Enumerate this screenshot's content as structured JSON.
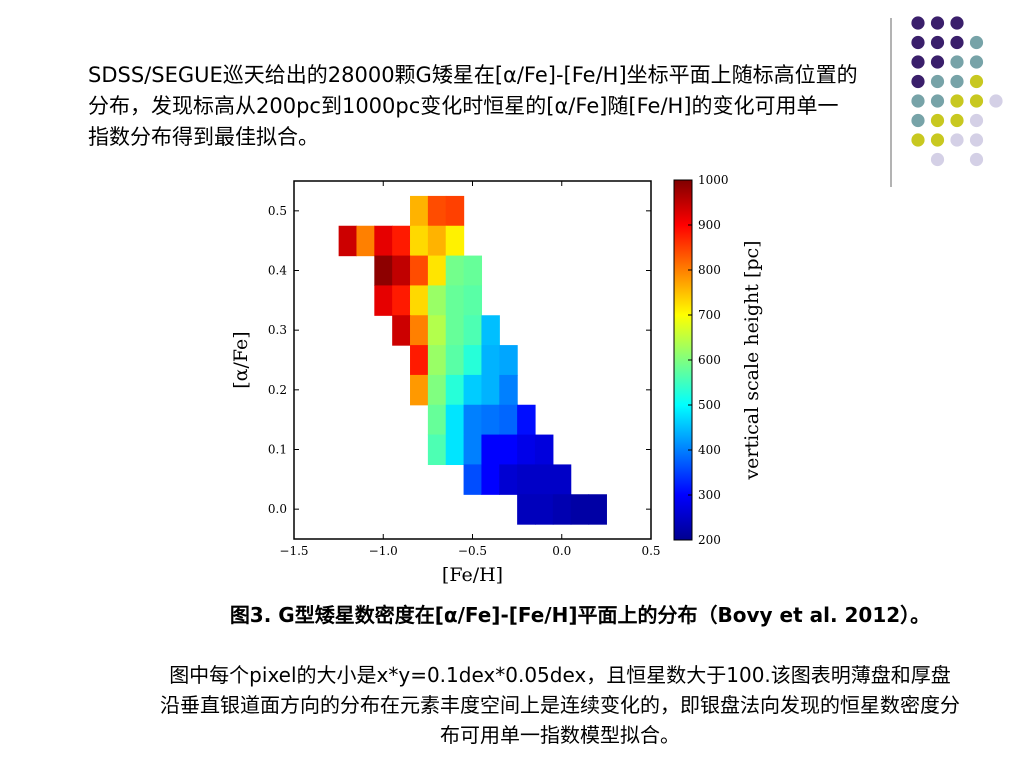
{
  "slide": {
    "intro_text": "SDSS/SEGUE巡天给出的28000颗G矮星在[α/Fe]-[Fe/H]坐标平面上随标高位置的分布，发现标高从200pc到1000pc变化时恒星的[α/Fe]随[Fe/H]的变化可用单一指数分布得到最佳拟合。",
    "caption": "图3. G型矮星数密度在[α/Fe]-[Fe/H]平面上的分布（Bovy et al. 2012）。",
    "note": "图中每个pixel的大小是x*y=0.1dex*0.05dex，且恒星数大于100.该图表明薄盘和厚盘沿垂直银道面方向的分布在元素丰度空间上是连续变化的，即银盘法向发现的恒星数密度分布可用单一指数模型拟合。"
  },
  "decoration": {
    "colors": {
      "purple": "#3a1f6b",
      "teal": "#77a3a8",
      "yellow": "#c8c820",
      "lavender": "#d4d0e6",
      "divider": "#9a9a9a"
    },
    "dot_rows": [
      [
        "purple",
        "purple",
        "purple",
        null
      ],
      [
        "purple",
        "purple",
        "purple",
        "teal"
      ],
      [
        "purple",
        "purple",
        "teal",
        "teal"
      ],
      [
        "purple",
        "teal",
        "teal",
        "yellow"
      ],
      [
        "teal",
        "teal",
        "yellow",
        "yellow",
        "lavender"
      ],
      [
        "teal",
        "yellow",
        "yellow",
        "lavender"
      ],
      [
        "yellow",
        "yellow",
        "lavender",
        "lavender"
      ],
      [
        null,
        "lavender",
        null,
        "lavender"
      ]
    ]
  },
  "chart_data": {
    "type": "heatmap",
    "xlabel": "[Fe/H]",
    "ylabel": "[α/Fe]",
    "xlim": [
      -1.5,
      0.5
    ],
    "ylim": [
      -0.05,
      0.55
    ],
    "xticks": [
      -1.5,
      -1.0,
      -0.5,
      0.0,
      0.5
    ],
    "xtick_labels": [
      "−1.5",
      "−1.0",
      "−0.5",
      "0.0",
      "0.5"
    ],
    "yticks": [
      0.0,
      0.1,
      0.2,
      0.3,
      0.4,
      0.5
    ],
    "ytick_labels": [
      "0.0",
      "0.1",
      "0.2",
      "0.3",
      "0.4",
      "0.5"
    ],
    "pixel_size": {
      "dx": 0.1,
      "dy": 0.05
    },
    "colorbar": {
      "label": "vertical scale height [pc]",
      "min": 200,
      "max": 1000,
      "ticks": [
        200,
        300,
        400,
        500,
        600,
        700,
        800,
        900,
        1000
      ],
      "colormap": "jet"
    },
    "cells": [
      {
        "x": -0.8,
        "y": 0.5,
        "value": 760
      },
      {
        "x": -0.7,
        "y": 0.5,
        "value": 840
      },
      {
        "x": -0.6,
        "y": 0.5,
        "value": 850
      },
      {
        "x": -1.2,
        "y": 0.45,
        "value": 940
      },
      {
        "x": -1.1,
        "y": 0.45,
        "value": 800
      },
      {
        "x": -1.0,
        "y": 0.45,
        "value": 920
      },
      {
        "x": -0.9,
        "y": 0.45,
        "value": 880
      },
      {
        "x": -0.8,
        "y": 0.45,
        "value": 730
      },
      {
        "x": -0.7,
        "y": 0.45,
        "value": 760
      },
      {
        "x": -0.6,
        "y": 0.45,
        "value": 710
      },
      {
        "x": -1.0,
        "y": 0.4,
        "value": 990
      },
      {
        "x": -0.9,
        "y": 0.4,
        "value": 950
      },
      {
        "x": -0.8,
        "y": 0.4,
        "value": 840
      },
      {
        "x": -0.7,
        "y": 0.4,
        "value": 720
      },
      {
        "x": -0.6,
        "y": 0.4,
        "value": 590
      },
      {
        "x": -0.5,
        "y": 0.4,
        "value": 580
      },
      {
        "x": -1.0,
        "y": 0.35,
        "value": 920
      },
      {
        "x": -0.9,
        "y": 0.35,
        "value": 880
      },
      {
        "x": -0.8,
        "y": 0.35,
        "value": 730
      },
      {
        "x": -0.7,
        "y": 0.35,
        "value": 620
      },
      {
        "x": -0.6,
        "y": 0.35,
        "value": 580
      },
      {
        "x": -0.5,
        "y": 0.35,
        "value": 570
      },
      {
        "x": -0.9,
        "y": 0.3,
        "value": 940
      },
      {
        "x": -0.8,
        "y": 0.3,
        "value": 800
      },
      {
        "x": -0.7,
        "y": 0.3,
        "value": 640
      },
      {
        "x": -0.6,
        "y": 0.3,
        "value": 580
      },
      {
        "x": -0.5,
        "y": 0.3,
        "value": 560
      },
      {
        "x": -0.4,
        "y": 0.3,
        "value": 450
      },
      {
        "x": -0.8,
        "y": 0.25,
        "value": 880
      },
      {
        "x": -0.7,
        "y": 0.25,
        "value": 620
      },
      {
        "x": -0.6,
        "y": 0.25,
        "value": 570
      },
      {
        "x": -0.5,
        "y": 0.25,
        "value": 530
      },
      {
        "x": -0.4,
        "y": 0.25,
        "value": 440
      },
      {
        "x": -0.3,
        "y": 0.25,
        "value": 430
      },
      {
        "x": -0.8,
        "y": 0.2,
        "value": 780
      },
      {
        "x": -0.7,
        "y": 0.2,
        "value": 600
      },
      {
        "x": -0.6,
        "y": 0.2,
        "value": 530
      },
      {
        "x": -0.5,
        "y": 0.2,
        "value": 460
      },
      {
        "x": -0.4,
        "y": 0.2,
        "value": 440
      },
      {
        "x": -0.3,
        "y": 0.2,
        "value": 400
      },
      {
        "x": -0.7,
        "y": 0.15,
        "value": 580
      },
      {
        "x": -0.6,
        "y": 0.15,
        "value": 480
      },
      {
        "x": -0.5,
        "y": 0.15,
        "value": 400
      },
      {
        "x": -0.4,
        "y": 0.15,
        "value": 390
      },
      {
        "x": -0.3,
        "y": 0.15,
        "value": 380
      },
      {
        "x": -0.2,
        "y": 0.15,
        "value": 310
      },
      {
        "x": -0.7,
        "y": 0.1,
        "value": 560
      },
      {
        "x": -0.6,
        "y": 0.1,
        "value": 480
      },
      {
        "x": -0.5,
        "y": 0.1,
        "value": 400
      },
      {
        "x": -0.4,
        "y": 0.1,
        "value": 300
      },
      {
        "x": -0.3,
        "y": 0.1,
        "value": 300
      },
      {
        "x": -0.2,
        "y": 0.1,
        "value": 280
      },
      {
        "x": -0.1,
        "y": 0.1,
        "value": 270
      },
      {
        "x": -0.5,
        "y": 0.05,
        "value": 360
      },
      {
        "x": -0.4,
        "y": 0.05,
        "value": 300
      },
      {
        "x": -0.3,
        "y": 0.05,
        "value": 260
      },
      {
        "x": -0.2,
        "y": 0.05,
        "value": 250
      },
      {
        "x": -0.1,
        "y": 0.05,
        "value": 250
      },
      {
        "x": 0.0,
        "y": 0.05,
        "value": 250
      },
      {
        "x": -0.2,
        "y": 0.0,
        "value": 240
      },
      {
        "x": -0.1,
        "y": 0.0,
        "value": 240
      },
      {
        "x": 0.0,
        "y": 0.0,
        "value": 230
      },
      {
        "x": 0.1,
        "y": 0.0,
        "value": 220
      },
      {
        "x": 0.2,
        "y": 0.0,
        "value": 220
      }
    ]
  }
}
